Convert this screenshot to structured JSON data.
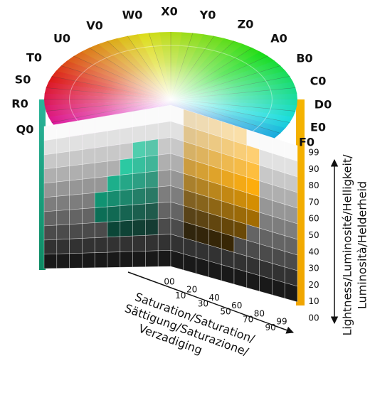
{
  "hue_labels": [
    "Q0",
    "R0",
    "S0",
    "T0",
    "U0",
    "V0",
    "W0",
    "X0",
    "Y0",
    "Z0",
    "A0",
    "B0",
    "C0",
    "D0",
    "E0",
    "F0"
  ],
  "lightness_ticks": [
    "99",
    "90",
    "80",
    "70",
    "60",
    "50",
    "40",
    "30",
    "20",
    "10",
    "00"
  ],
  "saturation_ticks": [
    "00",
    "10",
    "20",
    "30",
    "40",
    "50",
    "60",
    "70",
    "80",
    "90",
    "99"
  ],
  "lightness_label": [
    "Lightness/Luminosité/Helligkeit/",
    "Luminosità/Helderheid"
  ],
  "saturation_label": [
    "Saturation/Saturation/",
    "Sättigung/Saturazione/",
    "Verzadiging"
  ]
}
